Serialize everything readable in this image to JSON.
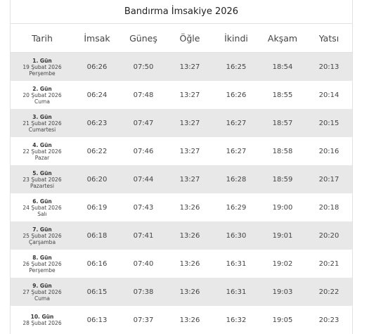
{
  "title": "Bandırma İmsakiye 2026",
  "table": {
    "headers": [
      "Tarih",
      "İmsak",
      "Güneş",
      "Öğle",
      "İkindi",
      "Akşam",
      "Yatsı"
    ],
    "rows": [
      {
        "day": "1. Gün",
        "date": "19 Şubat 2026",
        "weekday": "Perşembe",
        "times": [
          "06:26",
          "07:50",
          "13:27",
          "16:25",
          "18:54",
          "20:13"
        ]
      },
      {
        "day": "2. Gün",
        "date": "20 Şubat 2026",
        "weekday": "Cuma",
        "times": [
          "06:24",
          "07:48",
          "13:27",
          "16:26",
          "18:55",
          "20:14"
        ]
      },
      {
        "day": "3. Gün",
        "date": "21 Şubat 2026",
        "weekday": "Cumartesi",
        "times": [
          "06:23",
          "07:47",
          "13:27",
          "16:27",
          "18:57",
          "20:15"
        ]
      },
      {
        "day": "4. Gün",
        "date": "22 Şubat 2026",
        "weekday": "Pazar",
        "times": [
          "06:22",
          "07:46",
          "13:27",
          "16:27",
          "18:58",
          "20:16"
        ]
      },
      {
        "day": "5. Gün",
        "date": "23 Şubat 2026",
        "weekday": "Pazartesi",
        "times": [
          "06:20",
          "07:44",
          "13:27",
          "16:28",
          "18:59",
          "20:17"
        ]
      },
      {
        "day": "6. Gün",
        "date": "24 Şubat 2026",
        "weekday": "Salı",
        "times": [
          "06:19",
          "07:43",
          "13:26",
          "16:29",
          "19:00",
          "20:18"
        ]
      },
      {
        "day": "7. Gün",
        "date": "25 Şubat 2026",
        "weekday": "Çarşamba",
        "times": [
          "06:18",
          "07:41",
          "13:26",
          "16:30",
          "19:01",
          "20:20"
        ]
      },
      {
        "day": "8. Gün",
        "date": "26 Şubat 2026",
        "weekday": "Perşembe",
        "times": [
          "06:16",
          "07:40",
          "13:26",
          "16:31",
          "19:02",
          "20:21"
        ]
      },
      {
        "day": "9. Gün",
        "date": "27 Şubat 2026",
        "weekday": "Cuma",
        "times": [
          "06:15",
          "07:38",
          "13:26",
          "16:31",
          "19:03",
          "20:22"
        ]
      },
      {
        "day": "10. Gün",
        "date": "28 Şubat 2026",
        "times": [
          "06:13",
          "07:37",
          "13:26",
          "16:32",
          "19:05",
          "20:23"
        ]
      }
    ]
  }
}
